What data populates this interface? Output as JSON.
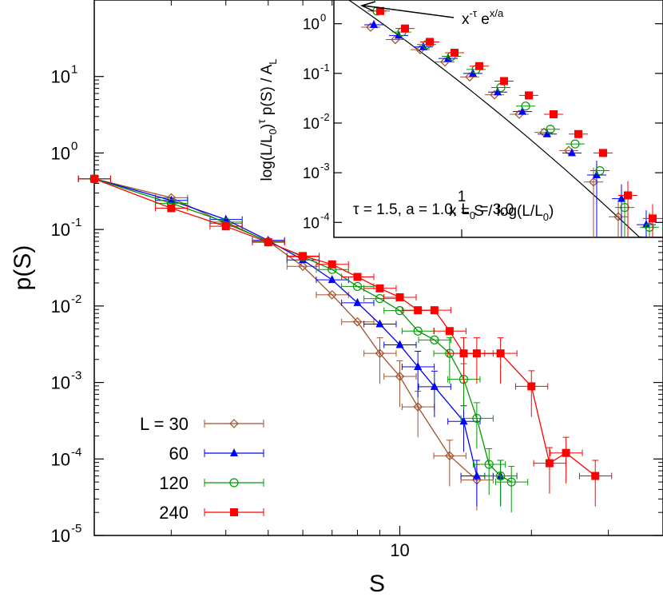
{
  "chart_data": [
    {
      "type": "scatter",
      "xscale": "log",
      "yscale": "log",
      "xlim": [
        2,
        40
      ],
      "ylim": [
        1e-05,
        100
      ],
      "xlabel": "S",
      "ylabel": "p(S)",
      "x_ticks": [
        {
          "value": 10,
          "label": "10"
        }
      ],
      "y_ticks": [
        {
          "value": 1e-05,
          "base": "10",
          "exp": "-5"
        },
        {
          "value": 0.0001,
          "base": "10",
          "exp": "-4"
        },
        {
          "value": 0.001,
          "base": "10",
          "exp": "-3"
        },
        {
          "value": 0.01,
          "base": "10",
          "exp": "-2"
        },
        {
          "value": 0.1,
          "base": "10",
          "exp": "-1"
        },
        {
          "value": 1,
          "base": "10",
          "exp": "0"
        },
        {
          "value": 10,
          "base": "10",
          "exp": "1"
        }
      ],
      "legend_title": "L = ",
      "legend_position": "bottom-left",
      "series": [
        {
          "name": "30",
          "color": "#a0522d",
          "marker": "diamond-open",
          "x": [
            2,
            3,
            4,
            5,
            6,
            7,
            8,
            9,
            10,
            11,
            13,
            15
          ],
          "y": [
            0.46,
            0.26,
            0.12,
            0.07,
            0.033,
            0.014,
            0.0062,
            0.0024,
            0.0012,
            0.00048,
            0.00011,
            5.3e-05
          ]
        },
        {
          "name": "60",
          "color": "#0000ff",
          "marker": "triangle-filled",
          "x": [
            2,
            3,
            4,
            5,
            6,
            7,
            8,
            9,
            10,
            11,
            12,
            14,
            15,
            17
          ],
          "y": [
            0.46,
            0.24,
            0.135,
            0.072,
            0.04,
            0.022,
            0.011,
            0.0058,
            0.0031,
            0.0016,
            0.00088,
            0.00031,
            6e-05,
            6e-05
          ]
        },
        {
          "name": "120",
          "color": "#009900",
          "marker": "circle-open",
          "x": [
            2,
            3,
            4,
            5,
            6,
            7,
            8,
            9,
            10,
            11,
            12,
            13,
            14,
            15,
            16,
            17,
            18
          ],
          "y": [
            0.46,
            0.22,
            0.125,
            0.069,
            0.044,
            0.03,
            0.018,
            0.0125,
            0.0087,
            0.0047,
            0.0036,
            0.0024,
            0.0011,
            0.00034,
            8.5e-05,
            6e-05,
            5e-05
          ]
        },
        {
          "name": "240",
          "color": "#ff0000",
          "marker": "square-filled",
          "x": [
            2,
            3,
            4,
            5,
            6,
            7,
            8,
            9,
            10,
            11,
            12,
            13,
            14,
            15,
            17,
            20,
            22,
            24,
            28
          ],
          "y": [
            0.46,
            0.19,
            0.11,
            0.068,
            0.045,
            0.035,
            0.024,
            0.017,
            0.013,
            0.0088,
            0.0088,
            0.0047,
            0.0024,
            0.0024,
            0.0024,
            0.00089,
            8.8e-05,
            0.00012,
            6e-05
          ]
        }
      ]
    },
    {
      "type": "scatter",
      "xlabel_parts": {
        "lead": "x = S / log(L/L",
        "sub": "0",
        "tail": ")"
      },
      "x_tick_label": "1",
      "ylabel_parts": {
        "lead": "log(L/L",
        "sub1": "0",
        "mid": ")",
        "sup": "τ",
        "after": " p(S) / A",
        "sub2": "L"
      },
      "yscale": "log",
      "ylim": [
        5e-05,
        3
      ],
      "y_ticks": [
        {
          "value": 0.0001,
          "base": "10",
          "exp": "-4"
        },
        {
          "value": 0.001,
          "base": "10",
          "exp": "-3"
        },
        {
          "value": 0.01,
          "base": "10",
          "exp": "-2"
        },
        {
          "value": 0.1,
          "base": "10",
          "exp": "-1"
        },
        {
          "value": 1,
          "base": "10",
          "exp": "0"
        }
      ],
      "fit_label": {
        "lead": "x",
        "exp1": "-τ",
        "mid": " e",
        "exp2": "x/a"
      },
      "parameters_text": {
        "part1": "τ = 1.5,  a = 1.0,  L",
        "sub": "0",
        "part2": " = 3.0"
      },
      "parameters": {
        "tau": 1.5,
        "a": 1.0,
        "L0": 3.0
      },
      "series": [
        {
          "name": "30",
          "color": "#a0522d",
          "marker": "diamond-open",
          "y": [
            0.85,
            0.48,
            0.3,
            0.17,
            0.085,
            0.037,
            0.015,
            0.0065,
            0.0028,
            0.00065,
            0.00013
          ]
        },
        {
          "name": "60",
          "color": "#0000ff",
          "marker": "triangle-filled",
          "y": [
            0.95,
            0.58,
            0.34,
            0.2,
            0.1,
            0.042,
            0.017,
            0.006,
            0.0025,
            0.0009,
            0.0003,
            9e-05
          ]
        },
        {
          "name": "120",
          "color": "#009900",
          "marker": "circle-open",
          "y": [
            1.8,
            0.68,
            0.38,
            0.22,
            0.12,
            0.052,
            0.022,
            0.0075,
            0.0038,
            0.0011,
            0.0002,
            8e-05
          ]
        },
        {
          "name": "240",
          "color": "#ff0000",
          "marker": "square-filled",
          "y": [
            1.8,
            0.8,
            0.43,
            0.26,
            0.14,
            0.07,
            0.036,
            0.015,
            0.006,
            0.0025,
            0.00035,
            0.00012
          ]
        }
      ]
    }
  ]
}
